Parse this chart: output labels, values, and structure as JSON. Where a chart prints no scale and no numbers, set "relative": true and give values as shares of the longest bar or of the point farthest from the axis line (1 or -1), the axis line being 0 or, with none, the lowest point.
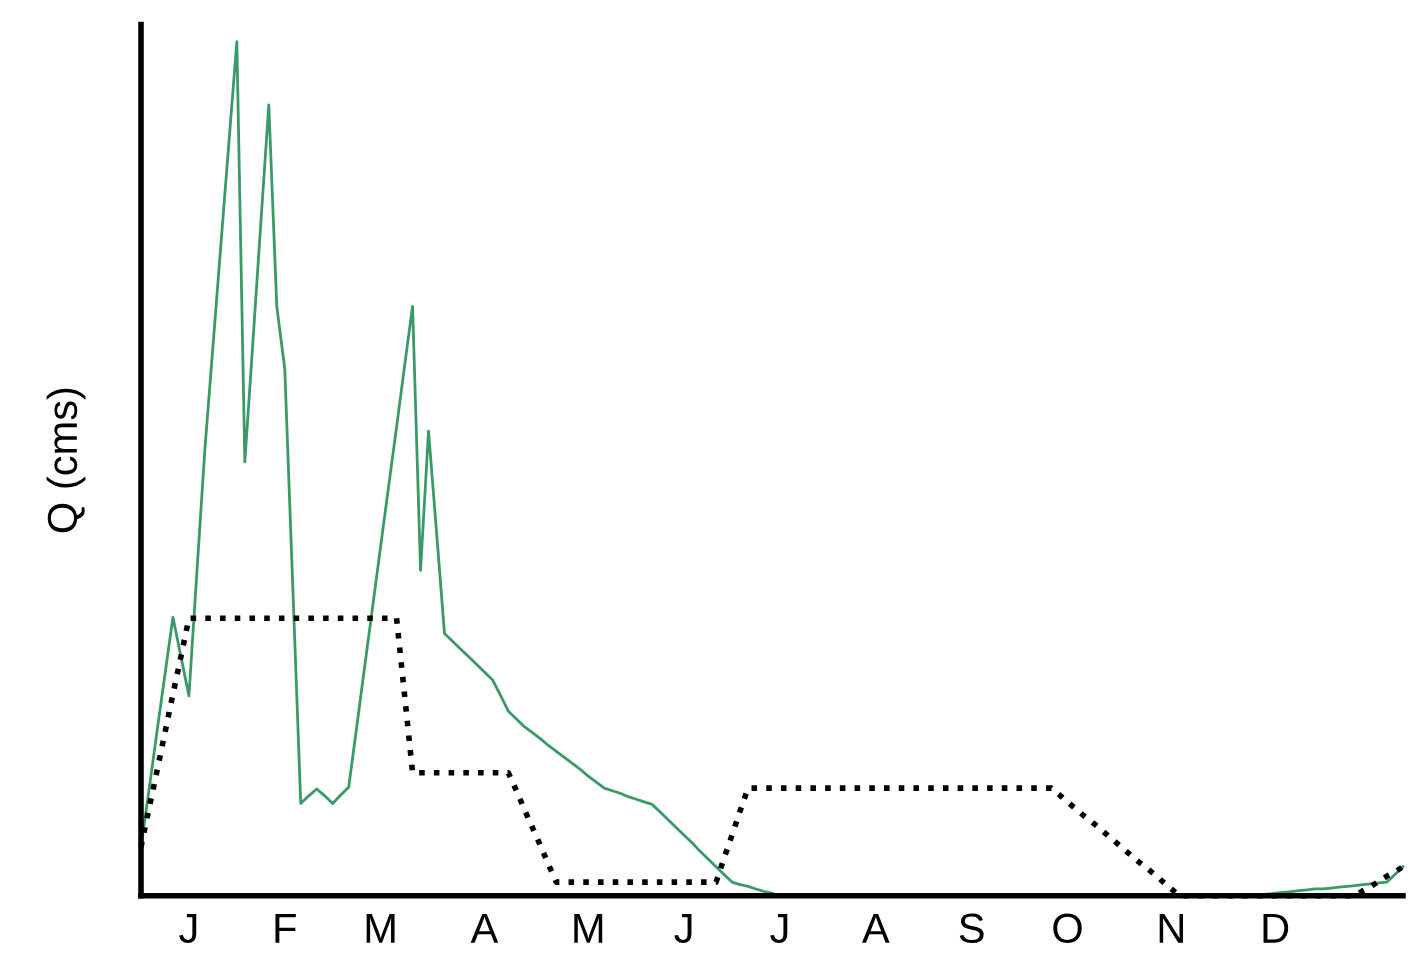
{
  "chart_data": {
    "type": "line",
    "relative": true,
    "ylabel": "Q (cms)",
    "grid": false,
    "legend": false,
    "tick_labels": "x",
    "marker": "none",
    "categories": [
      null,
      null,
      null,
      null,
      null,
      null,
      "J",
      null,
      null,
      null,
      null,
      null,
      null,
      null,
      null,
      null,
      null,
      null,
      "F",
      null,
      null,
      null,
      null,
      null,
      null,
      null,
      null,
      null,
      null,
      null,
      "M",
      null,
      null,
      null,
      null,
      null,
      null,
      null,
      null,
      null,
      null,
      null,
      null,
      "A",
      null,
      null,
      null,
      null,
      null,
      null,
      null,
      null,
      null,
      null,
      null,
      null,
      "M",
      null,
      null,
      null,
      null,
      null,
      null,
      null,
      null,
      null,
      null,
      null,
      "J",
      null,
      null,
      null,
      null,
      null,
      null,
      null,
      null,
      null,
      null,
      null,
      "J",
      null,
      null,
      null,
      null,
      null,
      null,
      null,
      null,
      null,
      null,
      null,
      "A",
      null,
      null,
      null,
      null,
      null,
      null,
      null,
      null,
      null,
      null,
      null,
      "S",
      null,
      null,
      null,
      null,
      null,
      null,
      null,
      null,
      null,
      null,
      null,
      "O",
      null,
      null,
      null,
      null,
      null,
      null,
      null,
      null,
      null,
      null,
      null,
      null,
      "N",
      null,
      null,
      null,
      null,
      null,
      null,
      null,
      null,
      null,
      null,
      null,
      null,
      "D",
      null,
      null,
      null,
      null,
      null,
      null,
      null,
      null,
      null,
      null,
      null,
      null,
      null,
      null,
      null,
      null
    ],
    "series": [
      {
        "color": "#3a9a65",
        "line_style": "solid",
        "values": [
          0.057,
          0.124,
          0.192,
          0.259,
          0.326,
          0.28,
          0.234,
          0.379,
          0.523,
          0.642,
          0.762,
          0.881,
          1.0,
          0.508,
          0.647,
          0.787,
          0.926,
          0.69,
          0.617,
          0.363,
          0.108,
          0.117,
          0.125,
          0.117,
          0.108,
          0.118,
          0.127,
          0.197,
          0.268,
          0.338,
          0.409,
          0.479,
          0.549,
          0.62,
          0.69,
          0.381,
          0.544,
          0.426,
          0.307,
          0.298,
          0.289,
          0.28,
          0.271,
          0.262,
          0.253,
          0.235,
          0.216,
          0.207,
          0.198,
          0.191,
          0.184,
          0.176,
          0.169,
          0.162,
          0.155,
          0.148,
          0.14,
          0.133,
          0.126,
          0.123,
          0.12,
          0.116,
          0.113,
          0.11,
          0.107,
          0.098,
          0.089,
          0.08,
          0.071,
          0.062,
          0.052,
          0.043,
          0.034,
          0.025,
          0.016,
          0.013,
          0.011,
          0.008,
          0.005,
          0.003,
          0,
          0,
          0,
          0,
          0,
          0,
          0,
          0,
          0,
          0,
          0,
          0,
          0,
          0,
          0,
          0,
          0,
          0,
          0,
          0,
          0,
          0,
          0,
          0,
          0,
          0,
          0,
          0,
          0,
          0,
          0,
          0,
          0,
          0,
          0,
          0,
          0,
          0,
          0,
          0,
          0,
          0,
          0,
          0,
          0,
          0,
          0,
          0,
          0,
          0,
          0,
          0,
          0,
          0,
          0,
          0,
          0,
          0,
          0,
          0,
          0.001,
          0.002,
          0.003,
          0.004,
          0.005,
          0.006,
          0.007,
          0.008,
          0.008,
          0.009,
          0.01,
          0.011,
          0.012,
          0.013,
          0.014,
          0.015,
          0.016,
          0.025,
          0.034
        ]
      },
      {
        "color": "#000000",
        "line_style": "dotted",
        "values": [
          0.057,
          0.102,
          0.146,
          0.191,
          0.236,
          0.28,
          0.325,
          0.325,
          0.325,
          0.325,
          0.325,
          0.325,
          0.325,
          0.325,
          0.325,
          0.325,
          0.325,
          0.325,
          0.325,
          0.325,
          0.325,
          0.325,
          0.325,
          0.325,
          0.325,
          0.325,
          0.325,
          0.325,
          0.325,
          0.325,
          0.325,
          0.325,
          0.325,
          0.235,
          0.144,
          0.144,
          0.144,
          0.144,
          0.144,
          0.144,
          0.144,
          0.144,
          0.144,
          0.144,
          0.144,
          0.144,
          0.144,
          0.123,
          0.101,
          0.08,
          0.059,
          0.037,
          0.016,
          0.016,
          0.016,
          0.016,
          0.016,
          0.016,
          0.016,
          0.016,
          0.016,
          0.016,
          0.016,
          0.016,
          0.016,
          0.016,
          0.016,
          0.016,
          0.016,
          0.016,
          0.016,
          0.016,
          0.016,
          0.044,
          0.071,
          0.099,
          0.126,
          0.126,
          0.126,
          0.126,
          0.126,
          0.126,
          0.126,
          0.126,
          0.126,
          0.126,
          0.126,
          0.126,
          0.126,
          0.126,
          0.126,
          0.126,
          0.126,
          0.126,
          0.126,
          0.126,
          0.126,
          0.126,
          0.126,
          0.126,
          0.126,
          0.126,
          0.126,
          0.126,
          0.126,
          0.126,
          0.126,
          0.126,
          0.126,
          0.126,
          0.126,
          0.126,
          0.126,
          0.126,
          0.126,
          0.118,
          0.11,
          0.102,
          0.094,
          0.087,
          0.079,
          0.071,
          0.063,
          0.055,
          0.047,
          0.039,
          0.032,
          0.024,
          0.016,
          0.008,
          0,
          0,
          0,
          0,
          0,
          0,
          0,
          0,
          0,
          0,
          0,
          0,
          0,
          0,
          0,
          0,
          0,
          0,
          0,
          0,
          0,
          0,
          0,
          0.006,
          0.011,
          0.017,
          0.023,
          0.028,
          0.034
        ]
      }
    ]
  }
}
